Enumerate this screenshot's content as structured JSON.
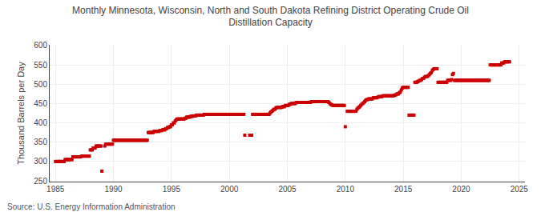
{
  "chart_data": {
    "type": "scatter",
    "title": "Monthly Minnesota, Wisconsin, North and South Dakota Refining District Operating Crude Oil\nDistillation Capacity",
    "ylabel": "Thousand Barrels per Day",
    "annotations": [
      "Source: U.S. Energy Information Administration"
    ],
    "color": "#cc0000",
    "marker": "square",
    "grid": true,
    "xlim": [
      1984.5,
      2025.5
    ],
    "ylim": [
      248,
      602
    ],
    "xticks": [
      1985,
      1990,
      1995,
      2000,
      2005,
      2010,
      2015,
      2020,
      2025
    ],
    "yticks": [
      250,
      300,
      350,
      400,
      450,
      500,
      550,
      600
    ],
    "x": [
      1985.0,
      1985.08,
      1985.17,
      1985.25,
      1985.33,
      1985.42,
      1985.5,
      1985.58,
      1985.67,
      1985.75,
      1985.83,
      1985.92,
      1986.0,
      1986.08,
      1986.17,
      1986.25,
      1986.33,
      1986.42,
      1986.5,
      1986.58,
      1986.67,
      1986.75,
      1986.83,
      1986.92,
      1987.0,
      1987.08,
      1987.17,
      1987.25,
      1987.33,
      1987.42,
      1987.5,
      1987.58,
      1987.67,
      1987.75,
      1987.83,
      1987.92,
      1988.0,
      1988.08,
      1988.17,
      1988.25,
      1988.33,
      1988.42,
      1988.5,
      1988.58,
      1988.67,
      1988.75,
      1988.83,
      1988.92,
      1989.0,
      1989.25,
      1989.33,
      1989.42,
      1989.5,
      1989.58,
      1989.67,
      1989.75,
      1989.83,
      1989.92,
      1990.0,
      1990.08,
      1990.17,
      1990.25,
      1990.33,
      1990.42,
      1990.5,
      1990.58,
      1990.67,
      1990.75,
      1990.83,
      1990.92,
      1991.0,
      1991.08,
      1991.17,
      1991.25,
      1991.33,
      1991.42,
      1991.5,
      1991.58,
      1991.67,
      1991.75,
      1991.83,
      1991.92,
      1992.0,
      1992.08,
      1992.17,
      1992.25,
      1992.33,
      1992.42,
      1992.5,
      1992.58,
      1992.67,
      1992.75,
      1992.83,
      1992.92,
      1993.0,
      1993.08,
      1993.17,
      1993.25,
      1993.33,
      1993.42,
      1993.5,
      1993.58,
      1993.67,
      1993.75,
      1993.83,
      1993.92,
      1994.0,
      1994.08,
      1994.17,
      1994.25,
      1994.33,
      1994.42,
      1994.5,
      1994.58,
      1994.67,
      1994.75,
      1994.83,
      1994.92,
      1995.0,
      1995.08,
      1995.17,
      1995.25,
      1995.33,
      1995.42,
      1995.5,
      1995.58,
      1995.67,
      1995.75,
      1995.83,
      1995.92,
      1996.0,
      1996.08,
      1996.17,
      1996.25,
      1996.33,
      1996.42,
      1996.5,
      1996.58,
      1996.67,
      1996.75,
      1996.83,
      1996.92,
      1997.0,
      1997.08,
      1997.17,
      1997.25,
      1997.33,
      1997.42,
      1997.5,
      1997.58,
      1997.67,
      1997.75,
      1997.83,
      1997.92,
      1998.0,
      1998.08,
      1998.17,
      1998.25,
      1998.33,
      1998.42,
      1998.5,
      1998.58,
      1998.67,
      1998.75,
      1998.83,
      1998.92,
      1999.0,
      1999.08,
      1999.17,
      1999.25,
      1999.33,
      1999.42,
      1999.5,
      1999.58,
      1999.67,
      1999.75,
      1999.83,
      1999.92,
      2000.0,
      2000.08,
      2000.17,
      2000.25,
      2000.33,
      2000.42,
      2000.5,
      2000.58,
      2000.67,
      2000.75,
      2000.83,
      2000.92,
      2001.0,
      2001.08,
      2001.17,
      2001.25,
      2001.33,
      2001.75,
      2001.83,
      2001.92,
      2002.0,
      2002.08,
      2002.17,
      2002.25,
      2002.33,
      2002.42,
      2002.5,
      2002.58,
      2002.67,
      2002.75,
      2002.83,
      2002.92,
      2003.0,
      2003.08,
      2003.17,
      2003.25,
      2003.33,
      2003.42,
      2003.5,
      2003.58,
      2003.67,
      2003.75,
      2003.83,
      2003.92,
      2004.0,
      2004.08,
      2004.17,
      2004.25,
      2004.33,
      2004.42,
      2004.5,
      2004.58,
      2004.67,
      2004.75,
      2004.83,
      2004.92,
      2005.0,
      2005.08,
      2005.17,
      2005.25,
      2005.33,
      2005.42,
      2005.5,
      2005.58,
      2005.67,
      2005.75,
      2005.83,
      2005.92,
      2006.0,
      2006.08,
      2006.17,
      2006.25,
      2006.33,
      2006.42,
      2006.5,
      2006.58,
      2006.67,
      2006.75,
      2006.83,
      2006.92,
      2007.0,
      2007.08,
      2007.17,
      2007.25,
      2007.33,
      2007.42,
      2007.5,
      2007.58,
      2007.67,
      2007.75,
      2007.83,
      2007.92,
      2008.0,
      2008.08,
      2008.17,
      2008.25,
      2008.33,
      2008.42,
      2008.5,
      2008.58,
      2008.67,
      2008.75,
      2008.83,
      2008.92,
      2009.0,
      2009.08,
      2009.17,
      2009.25,
      2009.33,
      2009.42,
      2009.5,
      2009.58,
      2009.67,
      2009.75,
      2009.83,
      2009.92,
      2010.0,
      2010.17,
      2010.25,
      2010.33,
      2010.42,
      2010.5,
      2010.58,
      2010.67,
      2010.75,
      2010.83,
      2010.92,
      2011.0,
      2011.08,
      2011.17,
      2011.25,
      2011.33,
      2011.42,
      2011.5,
      2011.58,
      2011.67,
      2011.75,
      2011.83,
      2011.92,
      2012.0,
      2012.08,
      2012.17,
      2012.25,
      2012.33,
      2012.42,
      2012.5,
      2012.58,
      2012.67,
      2012.75,
      2012.83,
      2012.92,
      2013.0,
      2013.08,
      2013.17,
      2013.25,
      2013.33,
      2013.42,
      2013.5,
      2013.58,
      2013.67,
      2013.75,
      2013.83,
      2013.92,
      2014.0,
      2014.08,
      2014.17,
      2014.25,
      2014.33,
      2014.42,
      2014.5,
      2014.58,
      2014.67,
      2014.75,
      2014.83,
      2014.92,
      2015.0,
      2015.08,
      2015.17,
      2015.25,
      2015.33,
      2015.42,
      2015.5,
      2015.67,
      2015.75,
      2015.83,
      2015.92,
      2016.0,
      2016.08,
      2016.17,
      2016.25,
      2016.33,
      2016.42,
      2016.5,
      2016.58,
      2016.67,
      2016.75,
      2016.83,
      2016.92,
      2017.0,
      2017.08,
      2017.17,
      2017.25,
      2017.33,
      2017.42,
      2017.5,
      2017.58,
      2017.67,
      2017.75,
      2017.83,
      2017.92,
      2018.0,
      2018.08,
      2018.17,
      2018.25,
      2018.33,
      2018.42,
      2018.5,
      2018.58,
      2018.67,
      2018.75,
      2018.83,
      2018.92,
      2019.0,
      2019.08,
      2019.17,
      2019.25,
      2019.33,
      2019.42,
      2019.5,
      2019.58,
      2019.67,
      2019.75,
      2019.83,
      2019.92,
      2020.0,
      2020.08,
      2020.17,
      2020.25,
      2020.33,
      2020.42,
      2020.5,
      2020.58,
      2020.67,
      2020.75,
      2020.83,
      2020.92,
      2021.0,
      2021.08,
      2021.17,
      2021.25,
      2021.33,
      2021.42,
      2021.5,
      2021.58,
      2021.67,
      2021.75,
      2021.83,
      2021.92,
      2022.0,
      2022.08,
      2022.17,
      2022.25,
      2022.33,
      2022.42,
      2022.5,
      2022.58,
      2022.67,
      2022.75,
      2022.83,
      2022.92,
      2023.0,
      2023.08,
      2023.17,
      2023.25,
      2023.33,
      2023.42,
      2023.5,
      2023.58,
      2023.67,
      2023.75,
      2023.83,
      2023.92,
      2024.0,
      2024.08,
      2024.17
    ],
    "values": [
      300,
      300,
      300,
      300,
      300,
      300,
      300,
      300,
      300,
      300,
      305,
      305,
      305,
      305,
      305,
      305,
      305,
      305,
      312,
      312,
      312,
      312,
      312,
      312,
      312,
      312,
      312,
      314,
      314,
      314,
      314,
      314,
      314,
      314,
      314,
      314,
      330,
      330,
      330,
      335,
      335,
      335,
      340,
      340,
      340,
      340,
      340,
      340,
      275,
      340,
      345,
      345,
      345,
      345,
      345,
      345,
      345,
      345,
      355,
      355,
      355,
      355,
      355,
      355,
      355,
      355,
      355,
      355,
      355,
      355,
      355,
      355,
      355,
      355,
      355,
      355,
      355,
      355,
      355,
      355,
      355,
      355,
      355,
      355,
      355,
      355,
      355,
      355,
      355,
      355,
      355,
      355,
      355,
      355,
      375,
      375,
      375,
      375,
      375,
      375,
      378,
      378,
      378,
      378,
      378,
      378,
      380,
      380,
      380,
      382,
      382,
      382,
      385,
      385,
      388,
      388,
      390,
      390,
      395,
      395,
      400,
      400,
      405,
      408,
      410,
      410,
      410,
      410,
      410,
      410,
      410,
      410,
      412,
      412,
      415,
      415,
      415,
      415,
      417,
      417,
      417,
      418,
      418,
      418,
      420,
      420,
      420,
      420,
      420,
      420,
      420,
      420,
      422,
      422,
      422,
      422,
      422,
      422,
      422,
      422,
      422,
      422,
      422,
      422,
      422,
      422,
      422,
      422,
      422,
      422,
      422,
      422,
      422,
      422,
      422,
      422,
      422,
      422,
      422,
      422,
      422,
      422,
      422,
      422,
      422,
      422,
      422,
      422,
      422,
      422,
      422,
      422,
      422,
      422,
      368,
      368,
      368,
      368,
      422,
      422,
      422,
      422,
      422,
      422,
      422,
      422,
      422,
      422,
      422,
      422,
      422,
      422,
      422,
      422,
      422,
      422,
      425,
      428,
      430,
      432,
      435,
      435,
      438,
      440,
      440,
      440,
      440,
      440,
      440,
      442,
      442,
      442,
      445,
      445,
      445,
      445,
      448,
      448,
      450,
      450,
      450,
      450,
      450,
      452,
      453,
      453,
      453,
      453,
      453,
      453,
      453,
      453,
      453,
      453,
      453,
      453,
      453,
      453,
      453,
      455,
      455,
      455,
      455,
      455,
      455,
      455,
      455,
      455,
      455,
      455,
      455,
      455,
      455,
      455,
      455,
      455,
      455,
      453,
      450,
      448,
      447,
      445,
      445,
      445,
      445,
      445,
      445,
      445,
      445,
      445,
      445,
      445,
      445,
      445,
      390,
      430,
      430,
      430,
      430,
      430,
      430,
      430,
      430,
      430,
      430,
      435,
      438,
      440,
      442,
      445,
      448,
      450,
      452,
      455,
      458,
      460,
      460,
      462,
      462,
      462,
      462,
      462,
      465,
      465,
      465,
      465,
      465,
      467,
      468,
      468,
      468,
      468,
      470,
      470,
      470,
      470,
      470,
      470,
      470,
      470,
      470,
      470,
      470,
      470,
      472,
      472,
      474,
      475,
      475,
      478,
      480,
      485,
      490,
      492,
      492,
      492,
      492,
      492,
      492,
      420,
      420,
      420,
      420,
      420,
      505,
      505,
      505,
      507,
      508,
      510,
      510,
      512,
      515,
      515,
      518,
      520,
      520,
      520,
      522,
      525,
      528,
      530,
      535,
      538,
      540,
      540,
      540,
      540,
      505,
      505,
      505,
      505,
      505,
      505,
      505,
      505,
      505,
      505,
      510,
      510,
      510,
      510,
      512,
      525,
      528,
      510,
      510,
      510,
      510,
      510,
      510,
      510,
      510,
      510,
      510,
      510,
      510,
      510,
      510,
      510,
      510,
      510,
      510,
      510,
      510,
      510,
      510,
      510,
      510,
      510,
      510,
      510,
      510,
      510,
      510,
      510,
      510,
      510,
      510,
      510,
      510,
      510,
      550,
      550,
      550,
      550,
      550,
      550,
      550,
      550,
      550,
      550,
      550,
      550,
      555,
      555,
      555,
      558,
      558,
      558,
      558,
      558,
      558
    ]
  }
}
